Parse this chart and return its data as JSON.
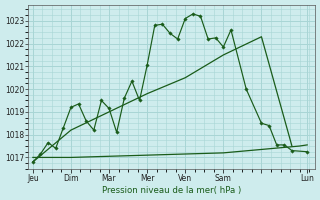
{
  "background_color": "#ceeced",
  "grid_color": "#a8d5d5",
  "line_color": "#1a5c1a",
  "xlabel": "Pression niveau de la mer( hPa )",
  "ylim": [
    1016.5,
    1023.7
  ],
  "yticks": [
    1017,
    1018,
    1019,
    1020,
    1021,
    1022,
    1023
  ],
  "series1_x": [
    0,
    0.5,
    1,
    1.5,
    2,
    2.5,
    3,
    3.5,
    4,
    4.5,
    5,
    5.5,
    6,
    6.5,
    7,
    7.5,
    8,
    8.5,
    9,
    9.5,
    10,
    10.5,
    11,
    11.5,
    12,
    12.5,
    13,
    14,
    15,
    15.5,
    16,
    16.5,
    17,
    18
  ],
  "series1_y": [
    1016.8,
    1017.15,
    1017.65,
    1017.4,
    1018.3,
    1019.2,
    1019.35,
    1018.6,
    1018.2,
    1019.5,
    1019.15,
    1018.1,
    1019.6,
    1020.35,
    1019.5,
    1021.05,
    1022.8,
    1022.85,
    1022.45,
    1022.2,
    1023.1,
    1023.3,
    1023.2,
    1022.2,
    1022.25,
    1021.85,
    1022.6,
    1020.0,
    1018.5,
    1018.4,
    1017.55,
    1017.55,
    1017.3,
    1017.25
  ],
  "series2_x": [
    0,
    2.5,
    5,
    7.5,
    10,
    12.5,
    15,
    17
  ],
  "series2_y": [
    1016.8,
    1018.2,
    1019.0,
    1019.8,
    1020.5,
    1021.5,
    1022.3,
    1017.5
  ],
  "series3_x": [
    0,
    2.5,
    5,
    7.5,
    10,
    12.5,
    15,
    17.5,
    18
  ],
  "series3_y": [
    1017.0,
    1017.0,
    1017.05,
    1017.1,
    1017.15,
    1017.2,
    1017.35,
    1017.5,
    1017.55
  ],
  "day_tick_x": [
    0,
    2.5,
    5,
    7.5,
    10,
    12.5,
    15,
    18
  ],
  "day_labels": [
    "Jeu",
    "Dim",
    "Mar",
    "Mer",
    "Ven",
    "Sam",
    "",
    "Lun"
  ]
}
